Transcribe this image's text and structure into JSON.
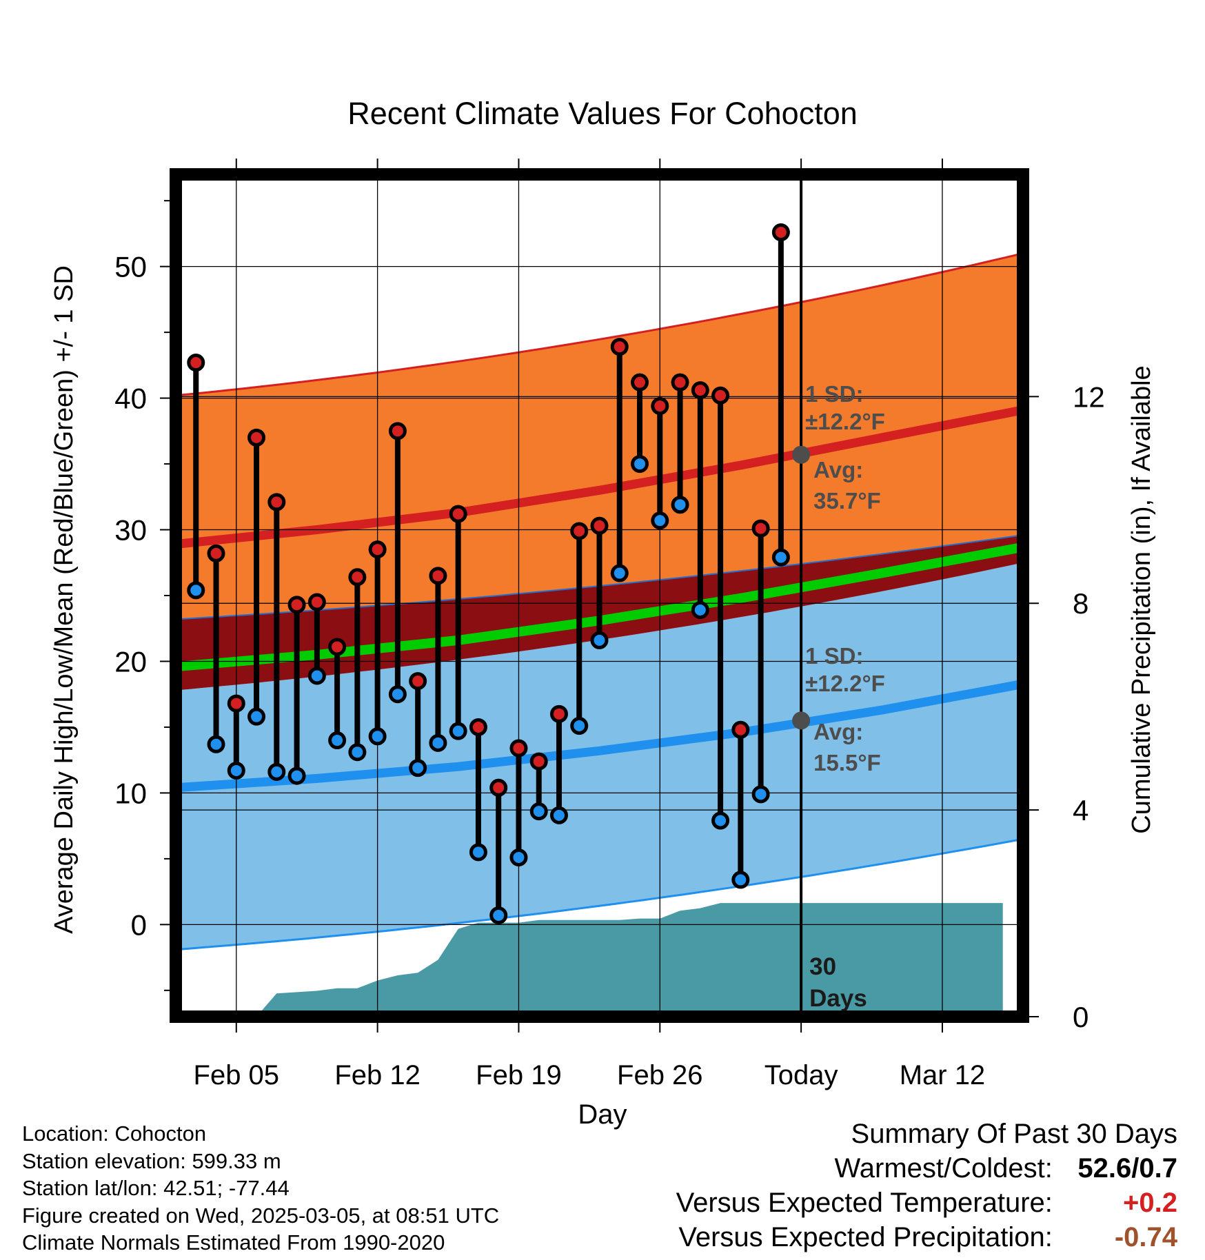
{
  "chart_data": {
    "type": "line",
    "title": "Recent Climate Values For Cohocton",
    "xlabel": "Day",
    "ylabel": "Average Daily High/Low/Mean (Red/Blue/Green) +/- 1 SD",
    "y2label": "Cumulative Precipitation (in), If Available",
    "xlim": [
      0,
      42
    ],
    "ylim": [
      -7,
      57
    ],
    "y2lim": [
      0,
      16.3
    ],
    "x_ticks": [
      {
        "x": 3,
        "label": "Feb 05"
      },
      {
        "x": 10,
        "label": "Feb 12"
      },
      {
        "x": 17,
        "label": "Feb 19"
      },
      {
        "x": 24,
        "label": "Feb 26"
      },
      {
        "x": 31,
        "label": "Today"
      },
      {
        "x": 38,
        "label": "Mar 12"
      }
    ],
    "y_ticks": [
      0,
      10,
      20,
      30,
      40,
      50
    ],
    "y2_ticks": [
      0,
      4,
      8,
      12
    ],
    "today_x": 31,
    "series": [
      {
        "name": "Daily High",
        "color": "#d42020",
        "values": [
          42.7,
          28.2,
          16.8,
          37.0,
          32.1,
          24.3,
          24.5,
          21.1,
          26.4,
          28.5,
          37.5,
          18.5,
          26.5,
          31.2,
          15.0,
          10.4,
          13.4,
          12.4,
          16.0,
          29.9,
          30.3,
          43.9,
          41.2,
          39.4,
          41.2,
          40.6,
          40.2,
          14.8,
          30.1,
          52.6
        ]
      },
      {
        "name": "Daily Low",
        "color": "#2090ee",
        "values": [
          25.4,
          13.7,
          11.7,
          15.8,
          11.6,
          11.3,
          18.9,
          14.0,
          13.1,
          14.3,
          17.5,
          11.9,
          13.8,
          14.7,
          5.5,
          0.7,
          5.1,
          8.6,
          8.3,
          15.1,
          21.6,
          26.7,
          35.0,
          30.7,
          31.9,
          23.9,
          7.9,
          3.4,
          9.9,
          27.9
        ]
      },
      {
        "name": "Normal High",
        "color": "#d42020",
        "x": [
          0,
          7,
          14,
          21,
          28,
          35,
          41
        ],
        "values": [
          28.9,
          30.0,
          31.3,
          33.0,
          34.9,
          37.0,
          38.8
        ]
      },
      {
        "name": "Normal Low",
        "color": "#2090ee",
        "x": [
          0,
          7,
          14,
          21,
          28,
          35,
          41
        ],
        "values": [
          10.4,
          11.1,
          12.0,
          13.2,
          14.6,
          16.3,
          18.0
        ]
      },
      {
        "name": "Normal Mean",
        "color": "#00cc00",
        "x": [
          0,
          7,
          14,
          21,
          28,
          35,
          41
        ],
        "values": [
          19.6,
          20.5,
          21.6,
          23.1,
          24.8,
          26.7,
          28.4
        ]
      },
      {
        "name": "Cumulative Precipitation (in)",
        "color": "#4a9aa5",
        "x": [
          0,
          4,
          5,
          7,
          8,
          9,
          10,
          11,
          12,
          13,
          14,
          15,
          16,
          17,
          18,
          19,
          20,
          21,
          22,
          23,
          24,
          25,
          26,
          27,
          28,
          29,
          30,
          31,
          41
        ],
        "values": [
          0,
          0,
          0.45,
          0.5,
          0.55,
          0.55,
          0.7,
          0.8,
          0.85,
          1.1,
          1.7,
          1.82,
          1.82,
          1.82,
          1.87,
          1.87,
          1.87,
          1.87,
          1.87,
          1.9,
          1.9,
          2.05,
          2.1,
          2.2,
          2.2,
          2.2,
          2.2,
          2.2,
          2.2
        ]
      }
    ],
    "bands": [
      {
        "name": "High +/- 1 SD",
        "color": "#f47a2c",
        "edge": "#d42020",
        "lower_start": 23.2,
        "lower_end": 29.6,
        "upper_start": 40.2,
        "upper_end": 51.0
      },
      {
        "name": "Low +/- 1 SD",
        "color": "#7fbfe8",
        "edge": "#2090ee",
        "lower_start": -1.9,
        "lower_end": 6.5,
        "upper_start": 17.8,
        "upper_end": 27.5
      },
      {
        "name": "Mean +/- SD",
        "color": "#8b0e12",
        "lower_start": 17.8,
        "lower_end": 27.5,
        "upper_start": 23.2,
        "upper_end": 29.6
      }
    ],
    "annotations": {
      "high": {
        "line1": "1 SD:",
        "line2": "±12.2°F",
        "avg_label": "Avg:",
        "avg_value": "35.7°F",
        "avg": 35.7
      },
      "low": {
        "line1": "1 SD:",
        "line2": "±12.2°F",
        "avg_label": "Avg:",
        "avg_value": "15.5°F",
        "avg": 15.5
      },
      "precip": {
        "line1": "30",
        "line2": "Days"
      }
    }
  },
  "info": {
    "location": "Location: Cohocton",
    "elevation": "Station elevation: 599.33 m",
    "latlon": "Station lat/lon: 42.51; -77.44",
    "created": "Figure created on Wed, 2025-03-05, at 08:51 UTC",
    "normals": "Climate Normals Estimated From 1990-2020"
  },
  "summary": {
    "heading": "Summary Of Past 30 Days",
    "warmest_label": "Warmest/Coldest:",
    "warmest_value": "52.6/0.7",
    "temp_label": "Versus Expected Temperature:",
    "temp_value": "+0.2",
    "temp_color": "#d42020",
    "precip_label": "Versus Expected Precipitation:",
    "precip_value": "-0.74",
    "precip_color": "#a0522d"
  }
}
